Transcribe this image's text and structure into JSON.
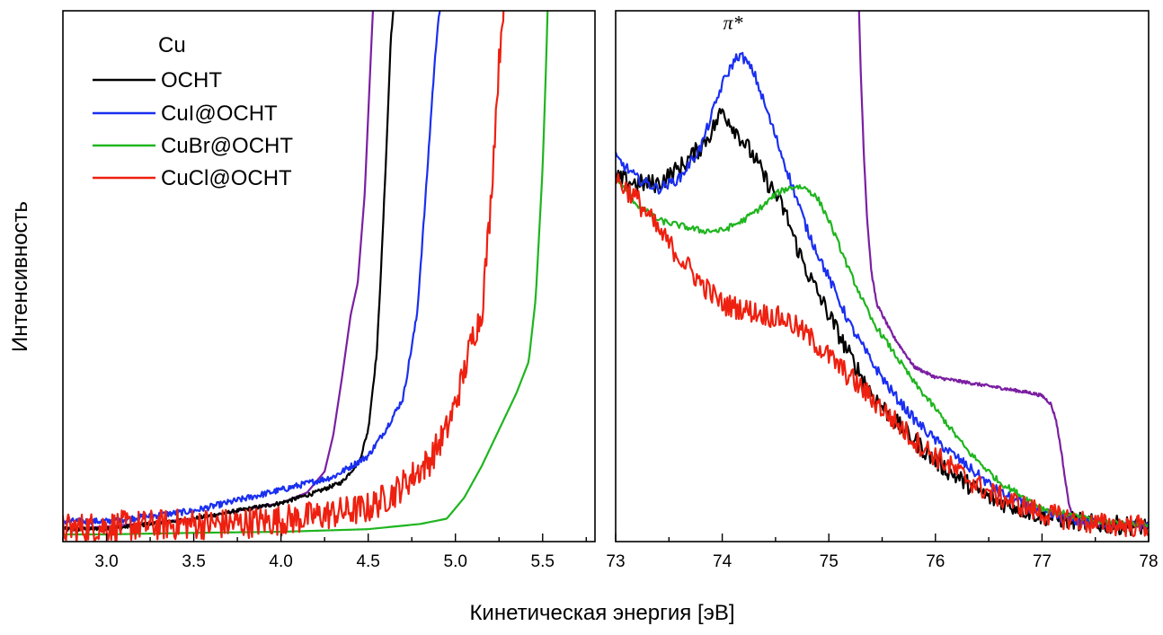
{
  "figure": {
    "ylabel": "Интенсивность",
    "xlabel": "Кинетическая энергия [эВ]"
  },
  "legend": {
    "title": "Cu",
    "placement": "top-left",
    "entries": [
      {
        "name": "OCHT",
        "color": "#000000"
      },
      {
        "name": "CuI@OCHT",
        "color": "#1a2ff0"
      },
      {
        "name": "CuBr@OCHT",
        "color": "#1fb51f"
      },
      {
        "name": "CuCl@OCHT",
        "color": "#ee2010"
      }
    ]
  },
  "colors": {
    "Cu": "#7b1fa2",
    "OCHT": "#000000",
    "CuI@OCHT": "#1a2ff0",
    "CuBr@OCHT": "#1fb51f",
    "CuCl@OCHT": "#ee2010"
  },
  "chart_data": [
    {
      "type": "line",
      "panel": "left",
      "xlabel": "",
      "ylabel": "Интенсивность",
      "xlim": [
        2.75,
        5.8
      ],
      "ylim": [
        0,
        1
      ],
      "grid": false,
      "xticks": [
        "3.0",
        "3.5",
        "4.0",
        "4.5",
        "5.0",
        "5.5"
      ],
      "series": [
        {
          "name": "Cu",
          "color": "#7b1fa2",
          "noise": 0,
          "x": [
            2.75,
            3.0,
            3.5,
            4.0,
            4.15,
            4.25,
            4.3,
            4.35,
            4.4,
            4.44,
            4.48,
            4.5,
            4.52,
            4.53
          ],
          "y": [
            0.01,
            0.015,
            0.03,
            0.06,
            0.08,
            0.12,
            0.19,
            0.3,
            0.42,
            0.48,
            0.65,
            0.8,
            0.95,
            1.02
          ]
        },
        {
          "name": "OCHT",
          "color": "#000000",
          "noise": 0.004,
          "x": [
            2.75,
            3.0,
            3.5,
            4.0,
            4.2,
            4.35,
            4.45,
            4.5,
            4.55,
            4.58,
            4.61,
            4.63,
            4.65
          ],
          "y": [
            0.01,
            0.01,
            0.03,
            0.06,
            0.08,
            0.1,
            0.14,
            0.2,
            0.35,
            0.55,
            0.78,
            0.95,
            1.02
          ]
        },
        {
          "name": "CuI@OCHT",
          "color": "#1a2ff0",
          "noise": 0.006,
          "x": [
            2.75,
            3.0,
            3.5,
            4.0,
            4.3,
            4.5,
            4.6,
            4.7,
            4.78,
            4.83,
            4.87,
            4.9,
            4.92
          ],
          "y": [
            0.025,
            0.025,
            0.045,
            0.085,
            0.11,
            0.15,
            0.2,
            0.26,
            0.42,
            0.65,
            0.85,
            0.98,
            1.02
          ]
        },
        {
          "name": "CuBr@OCHT",
          "color": "#1fb51f",
          "noise": 0,
          "x": [
            2.75,
            3.0,
            3.5,
            4.0,
            4.5,
            4.8,
            4.95,
            5.05,
            5.15,
            5.25,
            5.35,
            5.42,
            5.46,
            5.5,
            5.52,
            5.53
          ],
          "y": [
            0.0,
            0.0,
            0.003,
            0.005,
            0.01,
            0.02,
            0.03,
            0.07,
            0.13,
            0.2,
            0.27,
            0.33,
            0.45,
            0.7,
            0.9,
            1.02
          ]
        },
        {
          "name": "CuCl@OCHT",
          "color": "#ee2010",
          "noise": 0.03,
          "x": [
            2.75,
            3.0,
            3.5,
            3.7,
            3.9,
            4.1,
            4.3,
            4.5,
            4.65,
            4.75,
            4.85,
            4.95,
            5.0,
            5.05,
            5.1,
            5.15,
            5.2,
            5.24,
            5.27,
            5.28
          ],
          "y": [
            0.01,
            0.015,
            0.02,
            0.02,
            0.025,
            0.03,
            0.04,
            0.05,
            0.08,
            0.11,
            0.14,
            0.2,
            0.25,
            0.31,
            0.38,
            0.42,
            0.62,
            0.85,
            1.0,
            1.02
          ]
        }
      ]
    },
    {
      "type": "line",
      "panel": "right",
      "xlabel": "",
      "ylabel": "",
      "xlim": [
        73,
        78
      ],
      "ylim": [
        0,
        1
      ],
      "grid": false,
      "xticks": [
        "73",
        "74",
        "75",
        "76",
        "77",
        "78"
      ],
      "annotation": {
        "text": "π*",
        "x": 74.1,
        "y": 0.965
      },
      "series": [
        {
          "name": "Cu",
          "color": "#7b1fa2",
          "noise": 0.003,
          "x": [
            75.28,
            75.3,
            75.33,
            75.36,
            75.4,
            75.45,
            75.5,
            75.55,
            75.6,
            75.7,
            75.8,
            76.0,
            76.3,
            76.6,
            76.9,
            77.0,
            77.08,
            77.13,
            77.18,
            77.22,
            77.26,
            77.3,
            77.4,
            77.6,
            77.8,
            78.0
          ],
          "y": [
            1.02,
            0.88,
            0.72,
            0.6,
            0.5,
            0.44,
            0.42,
            0.4,
            0.38,
            0.35,
            0.32,
            0.3,
            0.29,
            0.28,
            0.27,
            0.265,
            0.25,
            0.22,
            0.16,
            0.1,
            0.05,
            0.03,
            0.02,
            0.015,
            0.015,
            0.02
          ]
        },
        {
          "name": "OCHT",
          "color": "#000000",
          "noise": 0.018,
          "x": [
            73.0,
            73.2,
            73.4,
            73.6,
            73.8,
            73.9,
            74.0,
            74.1,
            74.2,
            74.3,
            74.4,
            74.5,
            74.6,
            74.7,
            74.8,
            74.9,
            75.0,
            75.2,
            75.4,
            75.6,
            75.8,
            76.0,
            76.2,
            76.5,
            77.0,
            77.5,
            78.0
          ],
          "y": [
            0.68,
            0.67,
            0.67,
            0.7,
            0.74,
            0.77,
            0.81,
            0.78,
            0.75,
            0.72,
            0.68,
            0.65,
            0.61,
            0.55,
            0.5,
            0.46,
            0.42,
            0.34,
            0.27,
            0.22,
            0.18,
            0.14,
            0.11,
            0.07,
            0.035,
            0.02,
            0.015
          ]
        },
        {
          "name": "CuI@OCHT",
          "color": "#1a2ff0",
          "noise": 0.01,
          "x": [
            73.0,
            73.2,
            73.4,
            73.6,
            73.8,
            73.9,
            74.0,
            74.1,
            74.15,
            74.2,
            74.3,
            74.4,
            74.5,
            74.6,
            74.7,
            74.8,
            75.0,
            75.2,
            75.4,
            75.6,
            75.8,
            76.0,
            76.3,
            76.6,
            77.0,
            77.5,
            78.0
          ],
          "y": [
            0.72,
            0.68,
            0.66,
            0.68,
            0.74,
            0.8,
            0.86,
            0.9,
            0.915,
            0.91,
            0.88,
            0.82,
            0.76,
            0.7,
            0.64,
            0.58,
            0.49,
            0.4,
            0.33,
            0.27,
            0.22,
            0.18,
            0.13,
            0.08,
            0.04,
            0.02,
            0.015
          ]
        },
        {
          "name": "CuBr@OCHT",
          "color": "#1fb51f",
          "noise": 0.006,
          "x": [
            73.0,
            73.2,
            73.4,
            73.6,
            73.8,
            74.0,
            74.2,
            74.4,
            74.5,
            74.6,
            74.7,
            74.8,
            74.9,
            75.0,
            75.2,
            75.4,
            75.6,
            75.8,
            76.0,
            76.3,
            76.6,
            77.0,
            77.5,
            78.0
          ],
          "y": [
            0.68,
            0.63,
            0.6,
            0.59,
            0.58,
            0.58,
            0.6,
            0.63,
            0.65,
            0.66,
            0.665,
            0.66,
            0.64,
            0.6,
            0.5,
            0.41,
            0.35,
            0.29,
            0.24,
            0.16,
            0.1,
            0.05,
            0.025,
            0.02
          ]
        },
        {
          "name": "CuCl@OCHT",
          "color": "#ee2010",
          "noise": 0.022,
          "x": [
            73.0,
            73.2,
            73.4,
            73.6,
            73.8,
            74.0,
            74.2,
            74.4,
            74.6,
            74.8,
            75.0,
            75.2,
            75.4,
            75.6,
            75.8,
            76.0,
            76.2,
            76.5,
            77.0,
            77.5,
            78.0
          ],
          "y": [
            0.68,
            0.64,
            0.58,
            0.53,
            0.48,
            0.44,
            0.43,
            0.42,
            0.41,
            0.38,
            0.34,
            0.3,
            0.26,
            0.22,
            0.18,
            0.15,
            0.12,
            0.08,
            0.04,
            0.02,
            0.015
          ]
        }
      ]
    }
  ]
}
